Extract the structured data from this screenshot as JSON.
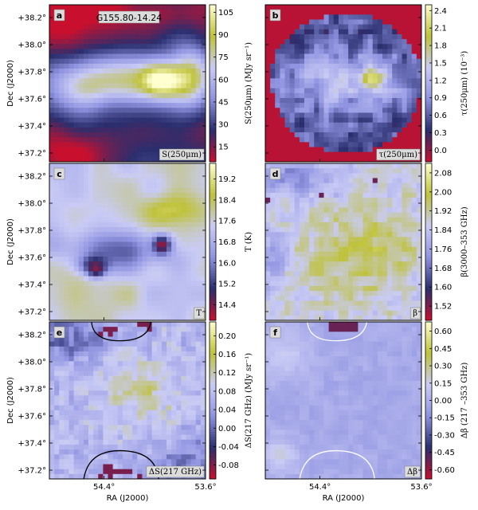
{
  "chart_data": {
    "type": "heatmap",
    "xlabel": "RA (J2000)",
    "ylabel": "Dec (J2000)",
    "x_ticks": [
      "54.4°",
      "53.6°"
    ],
    "y_ticks": [
      "+38.2°",
      "+38.0°",
      "+37.8°",
      "+37.6°",
      "+37.4°",
      "+37.2°"
    ],
    "panels": [
      {
        "id": "a",
        "letter": "a",
        "title": "G155.80-14.24",
        "corner_label": "S(250μm)",
        "colorbar_label": "S(250μm) (MJy sr⁻¹)",
        "colorbar_ticks": [
          "105",
          "90",
          "75",
          "60",
          "45",
          "30",
          "15"
        ],
        "vmin": 5,
        "vmax": 110,
        "colors": [
          "#c8102e",
          "#2a2e6e",
          "#8f93e0",
          "#c9cbf5",
          "#bfc23a",
          "#ffffd0"
        ]
      },
      {
        "id": "b",
        "letter": "b",
        "corner_label": "τ(250μm)",
        "colorbar_label": "τ(250μm) (10⁻³)",
        "colorbar_ticks": [
          "2.4",
          "2.1",
          "1.8",
          "1.5",
          "1.2",
          "0.9",
          "0.6",
          "0.3",
          "0.0"
        ],
        "vmin": -0.2,
        "vmax": 2.5,
        "colors": [
          "#c8102e",
          "#2a2e6e",
          "#8f93e0",
          "#c9cbf5",
          "#bfc23a",
          "#ffffd0"
        ]
      },
      {
        "id": "c",
        "letter": "c",
        "corner_label": "T",
        "colorbar_label": "T (K)",
        "colorbar_ticks": [
          "19.2",
          "18.4",
          "17.6",
          "16.8",
          "16.0",
          "15.2",
          "14.4"
        ],
        "vmin": 13.8,
        "vmax": 19.8,
        "colors": [
          "#c8102e",
          "#2a2e6e",
          "#8f93e0",
          "#c9cbf5",
          "#bfc23a",
          "#ffffd0"
        ]
      },
      {
        "id": "d",
        "letter": "d",
        "corner_label": "β",
        "colorbar_label": "β(3000–353 GHz)",
        "colorbar_ticks": [
          "2.08",
          "2.00",
          "1.92",
          "1.84",
          "1.76",
          "1.68",
          "1.60",
          "1.52"
        ],
        "vmin": 1.46,
        "vmax": 2.12,
        "colors": [
          "#c8102e",
          "#2a2e6e",
          "#8f93e0",
          "#c9cbf5",
          "#bfc23a",
          "#ffffd0"
        ]
      },
      {
        "id": "e",
        "letter": "e",
        "corner_label": "ΔS(217 GHz)",
        "colorbar_label": "ΔS(217 GHz) (MJy sr⁻¹)",
        "colorbar_ticks": [
          "0.20",
          "0.16",
          "0.12",
          "0.08",
          "0.04",
          "0.00",
          "-0.04",
          "-0.08"
        ],
        "vmin": -0.11,
        "vmax": 0.23,
        "colors": [
          "#c8102e",
          "#2a2e6e",
          "#8f93e0",
          "#c9cbf5",
          "#bfc23a",
          "#ffffd0"
        ]
      },
      {
        "id": "f",
        "letter": "f",
        "corner_label": "Δβ",
        "colorbar_label": "Δβ (217 –353 GHz)",
        "colorbar_ticks": [
          "0.60",
          "0.45",
          "0.30",
          "0.15",
          "0.00",
          "-0.15",
          "-0.30",
          "-0.45",
          "-0.60"
        ],
        "vmin": -0.68,
        "vmax": 0.68,
        "colors": [
          "#c8102e",
          "#2a2e6e",
          "#8f93e0",
          "#c9cbf5",
          "#bfc23a",
          "#ffffd0"
        ]
      }
    ]
  }
}
